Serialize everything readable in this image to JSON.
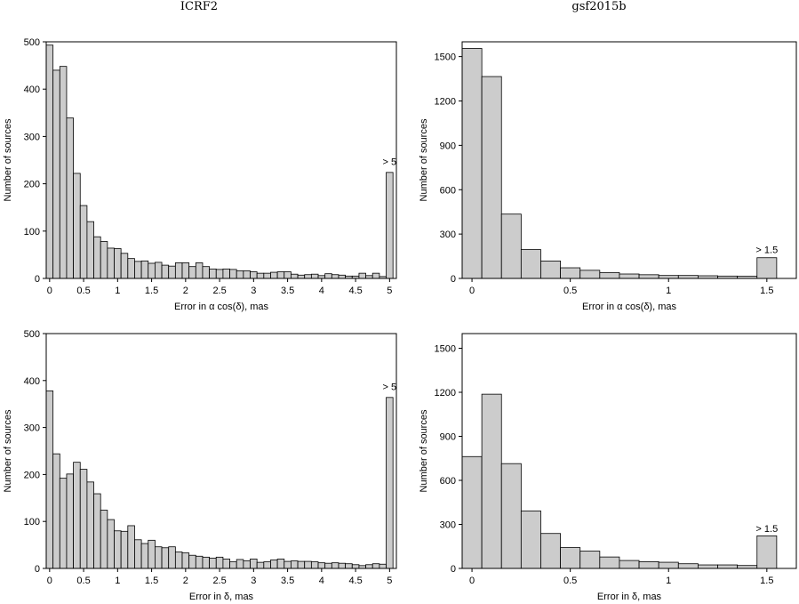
{
  "column_titles": [
    "ICRF2",
    "gsf2015b"
  ],
  "chart_data": [
    {
      "type": "bar",
      "title": "",
      "xlabel": "Error in α cos(δ), mas",
      "ylabel": "Number of sources",
      "bin_width": 0.1,
      "xlim": [
        -0.05,
        5.1
      ],
      "ylim": [
        0,
        500
      ],
      "xticks": [
        0,
        0.5,
        1,
        1.5,
        2,
        2.5,
        3,
        3.5,
        4,
        4.5,
        5
      ],
      "xticklabels": [
        "0",
        "0.5",
        "1",
        "1.5",
        "2",
        "2.5",
        "3",
        "3.5",
        "4",
        "4.5",
        "5"
      ],
      "yticks": [
        0,
        100,
        200,
        300,
        400,
        500
      ],
      "x": [
        0.0,
        0.1,
        0.2,
        0.3,
        0.4,
        0.5,
        0.6,
        0.7,
        0.8,
        0.9,
        1.0,
        1.1,
        1.2,
        1.3,
        1.4,
        1.5,
        1.6,
        1.7,
        1.8,
        1.9,
        2.0,
        2.1,
        2.2,
        2.3,
        2.4,
        2.5,
        2.6,
        2.7,
        2.8,
        2.9,
        3.0,
        3.1,
        3.2,
        3.3,
        3.4,
        3.5,
        3.6,
        3.7,
        3.8,
        3.9,
        4.0,
        4.1,
        4.2,
        4.3,
        4.4,
        4.5,
        4.6,
        4.7,
        4.8,
        4.9,
        5.0
      ],
      "values": [
        493,
        440,
        448,
        339,
        222,
        154,
        120,
        88,
        78,
        64,
        63,
        53,
        42,
        36,
        37,
        32,
        34,
        28,
        26,
        33,
        33,
        25,
        33,
        25,
        20,
        19,
        20,
        19,
        16,
        16,
        14,
        11,
        11,
        13,
        14,
        14,
        9,
        7,
        8,
        9,
        6,
        10,
        8,
        7,
        5,
        5,
        11,
        6,
        11,
        4,
        224
      ],
      "annotation": {
        "text": "> 5",
        "x": 5.0,
        "y": 240
      },
      "grid": false,
      "legend": "none"
    },
    {
      "type": "bar",
      "title": "",
      "xlabel": "Error in α cos(δ), mas",
      "ylabel": "Number of sources",
      "bin_width": 0.1,
      "xlim": [
        -0.05,
        1.65
      ],
      "ylim": [
        0,
        1600
      ],
      "xticks": [
        0,
        0.5,
        1,
        1.5
      ],
      "xticklabels": [
        "0",
        "0.5",
        "1",
        "1.5"
      ],
      "yticks": [
        0,
        300,
        600,
        900,
        1200,
        1500
      ],
      "x": [
        0.0,
        0.1,
        0.2,
        0.3,
        0.4,
        0.5,
        0.6,
        0.7,
        0.8,
        0.9,
        1.0,
        1.1,
        1.2,
        1.3,
        1.4,
        1.5
      ],
      "values": [
        1555,
        1365,
        435,
        195,
        118,
        72,
        55,
        40,
        30,
        25,
        20,
        20,
        18,
        16,
        15,
        140
      ],
      "annotation": {
        "text": "> 1.5",
        "x": 1.5,
        "y": 170
      },
      "grid": false,
      "legend": "none"
    },
    {
      "type": "bar",
      "title": "",
      "xlabel": "Error in δ, mas",
      "ylabel": "Number of sources",
      "bin_width": 0.1,
      "xlim": [
        -0.05,
        5.1
      ],
      "ylim": [
        0,
        500
      ],
      "xticks": [
        0,
        0.5,
        1,
        1.5,
        2,
        2.5,
        3,
        3.5,
        4,
        4.5,
        5
      ],
      "xticklabels": [
        "0",
        "0.5",
        "1",
        "1.5",
        "2",
        "2.5",
        "3",
        "3.5",
        "4",
        "4.5",
        "5"
      ],
      "yticks": [
        0,
        100,
        200,
        300,
        400,
        500
      ],
      "x": [
        0.0,
        0.1,
        0.2,
        0.3,
        0.4,
        0.5,
        0.6,
        0.7,
        0.8,
        0.9,
        1.0,
        1.1,
        1.2,
        1.3,
        1.4,
        1.5,
        1.6,
        1.7,
        1.8,
        1.9,
        2.0,
        2.1,
        2.2,
        2.3,
        2.4,
        2.5,
        2.6,
        2.7,
        2.8,
        2.9,
        3.0,
        3.1,
        3.2,
        3.3,
        3.4,
        3.5,
        3.6,
        3.7,
        3.8,
        3.9,
        4.0,
        4.1,
        4.2,
        4.3,
        4.4,
        4.5,
        4.6,
        4.7,
        4.8,
        4.9,
        5.0
      ],
      "values": [
        378,
        244,
        192,
        201,
        226,
        211,
        184,
        159,
        124,
        104,
        80,
        79,
        91,
        61,
        53,
        60,
        46,
        44,
        46,
        35,
        33,
        28,
        26,
        24,
        22,
        24,
        20,
        14,
        19,
        16,
        20,
        13,
        14,
        18,
        20,
        15,
        16,
        15,
        15,
        14,
        12,
        11,
        12,
        11,
        10,
        8,
        6,
        8,
        10,
        9,
        364
      ],
      "annotation": {
        "text": "> 5",
        "x": 5.0,
        "y": 380
      },
      "grid": false,
      "legend": "none"
    },
    {
      "type": "bar",
      "title": "",
      "xlabel": "Error in δ, mas",
      "ylabel": "Number of sources",
      "bin_width": 0.1,
      "xlim": [
        -0.05,
        1.65
      ],
      "ylim": [
        0,
        1600
      ],
      "xticks": [
        0,
        0.5,
        1,
        1.5
      ],
      "xticklabels": [
        "0",
        "0.5",
        "1",
        "1.5"
      ],
      "yticks": [
        0,
        300,
        600,
        900,
        1200,
        1500
      ],
      "x": [
        0.0,
        0.1,
        0.2,
        0.3,
        0.4,
        0.5,
        0.6,
        0.7,
        0.8,
        0.9,
        1.0,
        1.1,
        1.2,
        1.3,
        1.4,
        1.5
      ],
      "values": [
        762,
        1187,
        714,
        392,
        238,
        142,
        118,
        78,
        54,
        46,
        42,
        32,
        24,
        24,
        20,
        222
      ],
      "annotation": {
        "text": "> 1.5",
        "x": 1.5,
        "y": 250
      },
      "grid": false,
      "legend": "none"
    }
  ]
}
